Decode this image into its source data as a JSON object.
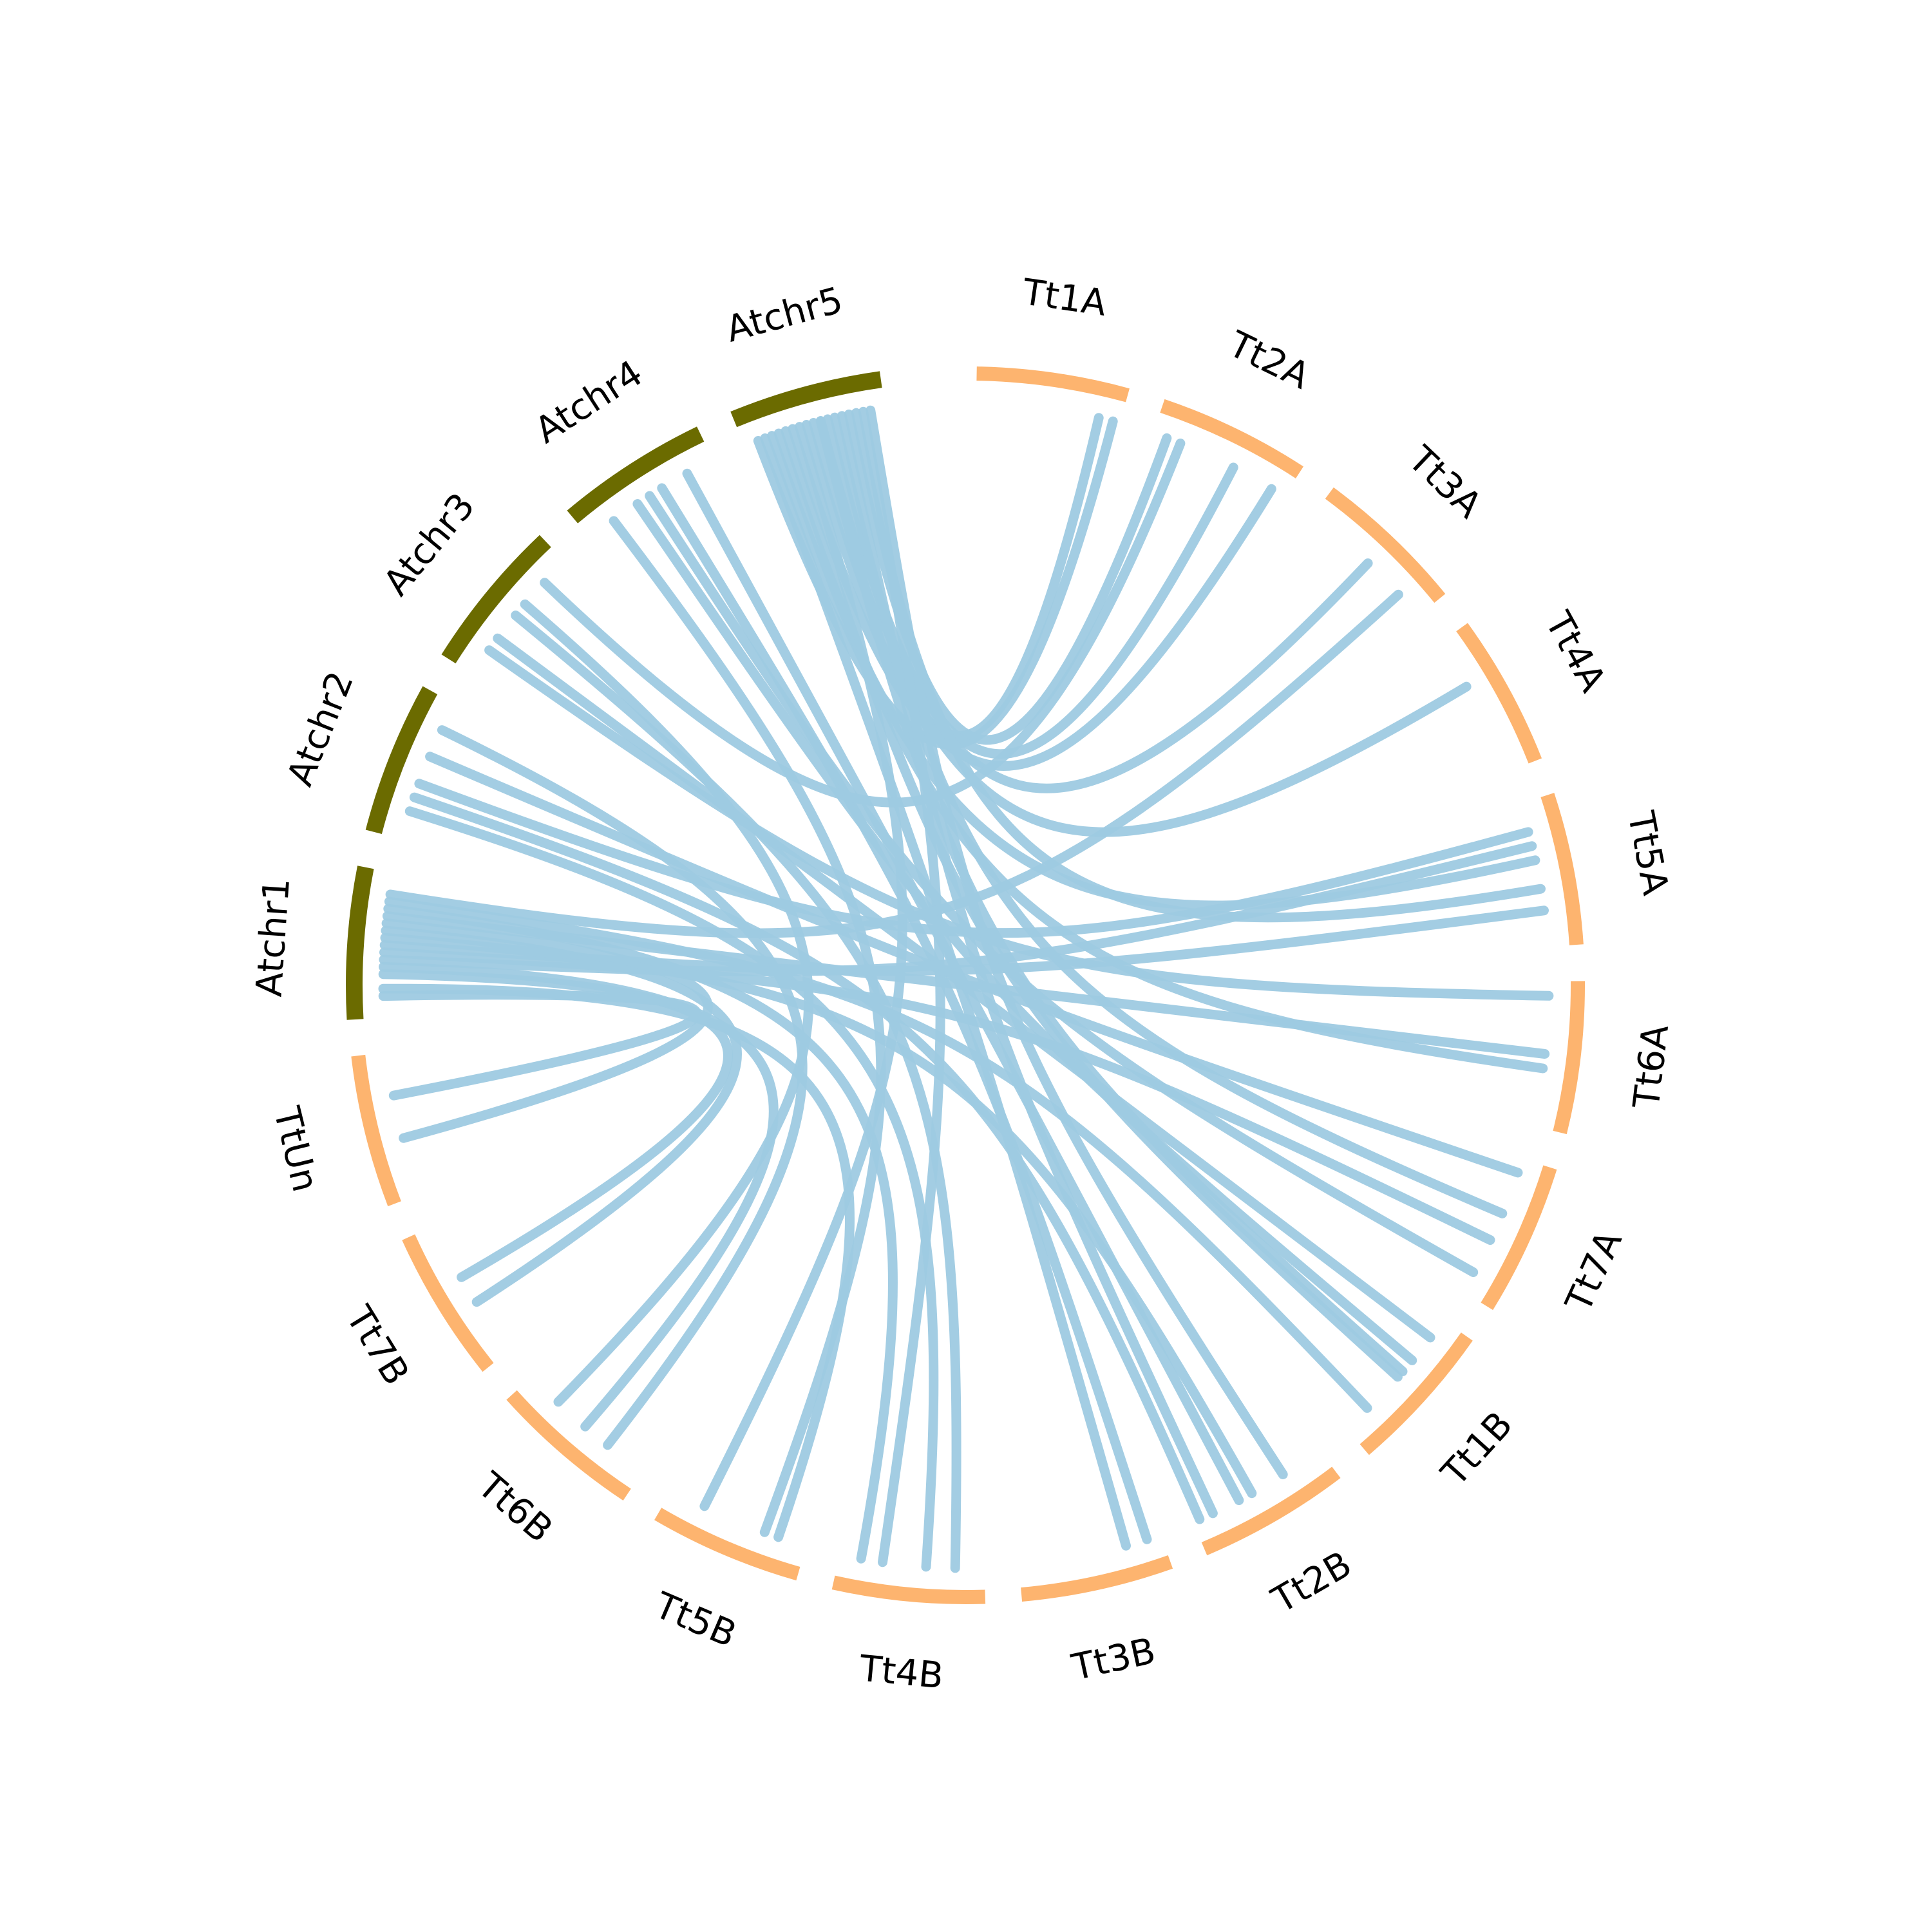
{
  "diagram": {
    "type": "circos",
    "colors": {
      "wheat": "#fdb46f",
      "arabidopsis": "#6b6b00",
      "link": "#9ecae1"
    },
    "chromosomes": [
      {
        "name": "Tt1A",
        "group": "wheat"
      },
      {
        "name": "Tt2A",
        "group": "wheat"
      },
      {
        "name": "Tt3A",
        "group": "wheat"
      },
      {
        "name": "Tt4A",
        "group": "wheat"
      },
      {
        "name": "Tt5A",
        "group": "wheat"
      },
      {
        "name": "Tt6A",
        "group": "wheat"
      },
      {
        "name": "Tt7A",
        "group": "wheat"
      },
      {
        "name": "Tt1B",
        "group": "wheat"
      },
      {
        "name": "Tt2B",
        "group": "wheat"
      },
      {
        "name": "Tt3B",
        "group": "wheat"
      },
      {
        "name": "Tt4B",
        "group": "wheat"
      },
      {
        "name": "Tt5B",
        "group": "wheat"
      },
      {
        "name": "Tt6B",
        "group": "wheat"
      },
      {
        "name": "Tt7B",
        "group": "wheat"
      },
      {
        "name": "TtUn",
        "group": "wheat"
      },
      {
        "name": "Atchr1",
        "group": "arabidopsis"
      },
      {
        "name": "Atchr2",
        "group": "arabidopsis"
      },
      {
        "name": "Atchr3",
        "group": "arabidopsis"
      },
      {
        "name": "Atchr4",
        "group": "arabidopsis"
      },
      {
        "name": "Atchr5",
        "group": "arabidopsis"
      }
    ],
    "links": [
      [
        "Atchr5",
        0.45,
        "Tt1A",
        0.85
      ],
      [
        "Atchr5",
        0.1,
        "Tt1A",
        0.95
      ],
      [
        "Atchr5",
        0.75,
        "Tt2A",
        0.1
      ],
      [
        "Atchr5",
        0.6,
        "Tt2A",
        0.6
      ],
      [
        "Atchr5",
        0.35,
        "Tt2A",
        0.9
      ],
      [
        "Atchr5",
        0.55,
        "Tt3A",
        0.5
      ],
      [
        "Atchr5",
        0.5,
        "Tt4A",
        0.35
      ],
      [
        "Atchr5",
        0.2,
        "Tt5A",
        0.4
      ],
      [
        "Atchr5",
        0.8,
        "Tt5A",
        0.6
      ],
      [
        "Atchr5",
        0.25,
        "Tt6A",
        0.6
      ],
      [
        "Atchr5",
        0.65,
        "Tt7A",
        0.4
      ],
      [
        "Atchr5",
        0.55,
        "Tt1B",
        0.45
      ],
      [
        "Atchr5",
        0.3,
        "Tt1B",
        0.5
      ],
      [
        "Atchr5",
        0.9,
        "Tt2B",
        0.3
      ],
      [
        "Atchr5",
        0.7,
        "Tt2B",
        0.85
      ],
      [
        "Atchr5",
        0.15,
        "Tt3B",
        0.25
      ],
      [
        "Atchr5",
        0.85,
        "Tt4B",
        0.7
      ],
      [
        "Atchr5",
        0.4,
        "Tt5B",
        0.75
      ],
      [
        "Atchr4",
        0.6,
        "Tt3B",
        0.1
      ],
      [
        "Atchr4",
        0.2,
        "Tt5B",
        0.3
      ],
      [
        "Atchr4",
        0.4,
        "Tt1B",
        0.35
      ],
      [
        "Atchr4",
        0.8,
        "Tt2B",
        0.65
      ],
      [
        "Atchr4",
        0.5,
        "Tt7A",
        0.85
      ],
      [
        "Atchr3",
        0.3,
        "Tt1B",
        0.15
      ],
      [
        "Atchr3",
        0.5,
        "Tt4B",
        0.2
      ],
      [
        "Atchr3",
        0.6,
        "Tt6B",
        0.75
      ],
      [
        "Atchr3",
        0.2,
        "Tt6A",
        0.1
      ],
      [
        "Atchr3",
        0.8,
        "Tt2A",
        0.2
      ],
      [
        "Atchr2",
        0.3,
        "Tt2B",
        0.95
      ],
      [
        "Atchr2",
        0.6,
        "Tt7A",
        0.1
      ],
      [
        "Atchr2",
        0.4,
        "Tt5A",
        0.2
      ],
      [
        "Atchr2",
        0.8,
        "Tt6B",
        0.3
      ],
      [
        "Atchr2",
        0.2,
        "Tt4B",
        0.4
      ],
      [
        "Atchr1",
        0.3,
        "Tt7B",
        0.6
      ],
      [
        "Atchr1",
        0.6,
        "Tt7B",
        0.4
      ],
      [
        "Atchr1",
        0.2,
        "Tt5B",
        0.2
      ],
      [
        "Atchr1",
        0.7,
        "Tt6A",
        0.5
      ],
      [
        "Atchr1",
        0.5,
        "Tt5A",
        0.75
      ],
      [
        "Atchr1",
        0.4,
        "Tt5A",
        0.3
      ],
      [
        "Atchr1",
        0.55,
        "Tt2B",
        0.55
      ],
      [
        "Atchr1",
        0.8,
        "Tt1B",
        0.8
      ],
      [
        "Atchr1",
        0.45,
        "Tt7A",
        0.6
      ],
      [
        "Atchr1",
        0.35,
        "Tt6B",
        0.5
      ],
      [
        "Atchr1",
        0.65,
        "TtUn",
        0.4
      ],
      [
        "Atchr1",
        0.75,
        "Tt4B",
        0.85
      ],
      [
        "Atchr1",
        0.15,
        "TtUn",
        0.7
      ],
      [
        "Atchr1",
        0.85,
        "Tt3A",
        0.8
      ]
    ]
  }
}
